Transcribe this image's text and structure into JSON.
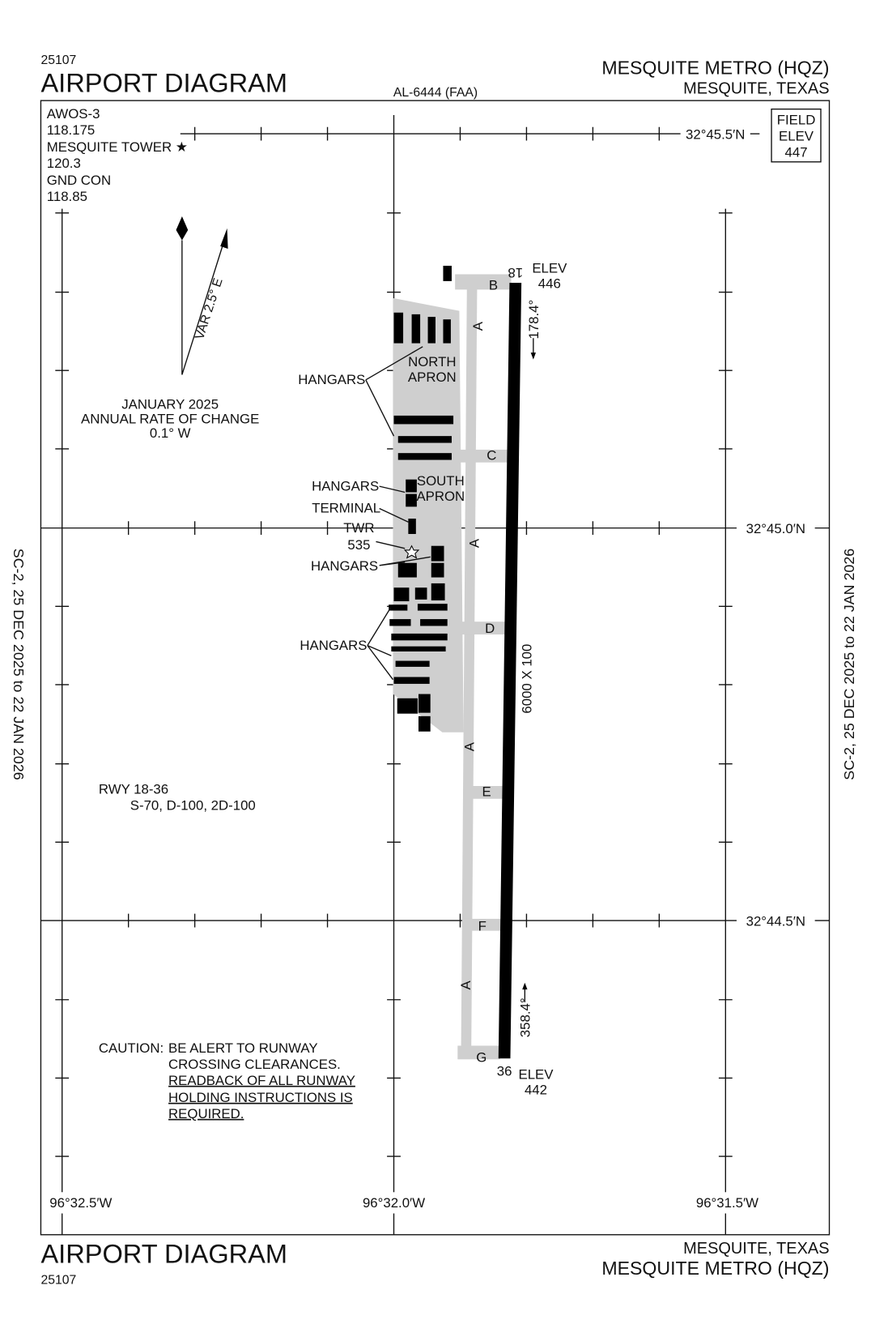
{
  "header": {
    "chart_number": "25107",
    "title": "AIRPORT DIAGRAM",
    "procedure_id": "AL-6444 (FAA)",
    "airport": "MESQUITE METRO (HQZ)",
    "city": "MESQUITE, TEXAS"
  },
  "communications": [
    "AWOS-3",
    "118.175",
    "MESQUITE TOWER ★",
    "120.3",
    "GND CON",
    "118.85"
  ],
  "field_elevation": [
    "FIELD",
    "ELEV",
    "447"
  ],
  "latitudes": [
    "32°45.5′N",
    "32°45.0′N",
    "32°44.5′N"
  ],
  "longitudes": [
    "96°32.5′W",
    "96°32.0′W",
    "96°31.5′W"
  ],
  "magnetic_variation": {
    "label": "VAR 2.5° E",
    "note": [
      "JANUARY 2025",
      "ANNUAL RATE OF CHANGE",
      "0.1° W"
    ]
  },
  "runway": {
    "end_north": "18",
    "north_elev": [
      "ELEV",
      "446"
    ],
    "north_heading": "178.4°",
    "end_south": "36",
    "south_elev": [
      "ELEV",
      "442"
    ],
    "south_heading": "358.4°",
    "dimensions": "6000 X 100",
    "designation": "RWY 18-36",
    "strength": "S-70, D-100, 2D-100"
  },
  "taxiways": [
    "B",
    "A",
    "C",
    "A",
    "D",
    "A",
    "E",
    "F",
    "A",
    "G"
  ],
  "labels": {
    "hangars": [
      "HANGARS",
      "HANGARS",
      "HANGARS",
      "HANGARS"
    ],
    "north_apron": [
      "NORTH",
      "APRON"
    ],
    "south_apron": [
      "SOUTH",
      "APRON"
    ],
    "terminal": "TERMINAL",
    "tower": [
      "TWR",
      "535"
    ]
  },
  "caution": {
    "label": "CAUTION:",
    "lines": [
      "BE ALERT TO RUNWAY",
      "CROSSING CLEARANCES.",
      "READBACK OF ALL RUNWAY",
      "HOLDING INSTRUCTIONS IS",
      "REQUIRED."
    ]
  },
  "validity": [
    "SC-2, 25 DEC 2025 to 22 JAN 2026",
    "SC-2, 25 DEC 2025 to 22 JAN 2026"
  ],
  "footer": {
    "title": "AIRPORT DIAGRAM",
    "chart_number": "25107",
    "city": "MESQUITE, TEXAS",
    "airport": "MESQUITE METRO (HQZ)"
  }
}
